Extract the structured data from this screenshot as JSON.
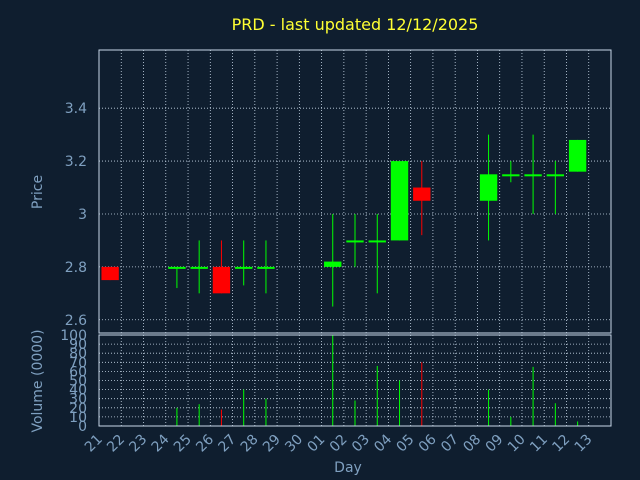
{
  "chart_data": {
    "type": "candlestick",
    "title": "PRD - last updated 12/12/2025",
    "xlabel": "Day",
    "ylabel": "Price",
    "volume_label": "Volume (0000)",
    "price_ylim": [
      2.55,
      3.62
    ],
    "price_ticks": [
      "2.6",
      "2.8",
      "3",
      "3.2",
      "3.4"
    ],
    "price_tick_values": [
      2.6,
      2.8,
      3.0,
      3.2,
      3.4
    ],
    "volume_ylim": [
      0,
      100
    ],
    "volume_ticks": [
      0,
      10,
      20,
      30,
      40,
      50,
      60,
      70,
      80,
      90,
      100
    ],
    "x_ticks": [
      "21",
      "22",
      "23",
      "24",
      "25",
      "26",
      "27",
      "28",
      "29",
      "30",
      "01",
      "02",
      "03",
      "04",
      "05",
      "06",
      "07",
      "08",
      "09",
      "10",
      "11",
      "12",
      "13"
    ],
    "up_color": "#00ff00",
    "down_color": "#ff0000",
    "candles": [
      {
        "x": "21",
        "open": 2.8,
        "high": 2.8,
        "low": 2.75,
        "close": 2.75,
        "volume": 0
      },
      {
        "x": "24",
        "open": 2.8,
        "high": 2.8,
        "low": 2.72,
        "close": 2.8,
        "volume": 20
      },
      {
        "x": "25",
        "open": 2.8,
        "high": 2.9,
        "low": 2.7,
        "close": 2.8,
        "volume": 24
      },
      {
        "x": "26",
        "open": 2.8,
        "high": 2.9,
        "low": 2.7,
        "close": 2.7,
        "volume": 18
      },
      {
        "x": "27",
        "open": 2.8,
        "high": 2.9,
        "low": 2.73,
        "close": 2.8,
        "volume": 40
      },
      {
        "x": "28",
        "open": 2.8,
        "high": 2.9,
        "low": 2.7,
        "close": 2.8,
        "volume": 30
      },
      {
        "x": "01",
        "open": 2.8,
        "high": 3.0,
        "low": 2.65,
        "close": 2.82,
        "volume": 100
      },
      {
        "x": "02",
        "open": 2.9,
        "high": 3.0,
        "low": 2.8,
        "close": 2.9,
        "volume": 28
      },
      {
        "x": "03",
        "open": 2.9,
        "high": 3.0,
        "low": 2.7,
        "close": 2.9,
        "volume": 66
      },
      {
        "x": "04",
        "open": 2.9,
        "high": 3.2,
        "low": 2.9,
        "close": 3.2,
        "volume": 50
      },
      {
        "x": "05",
        "open": 3.1,
        "high": 3.2,
        "low": 2.92,
        "close": 3.05,
        "volume": 70
      },
      {
        "x": "08",
        "open": 3.05,
        "high": 3.3,
        "low": 2.9,
        "close": 3.15,
        "volume": 40
      },
      {
        "x": "09",
        "open": 3.15,
        "high": 3.2,
        "low": 3.12,
        "close": 3.15,
        "volume": 10
      },
      {
        "x": "10",
        "open": 3.15,
        "high": 3.3,
        "low": 3.0,
        "close": 3.15,
        "volume": 65
      },
      {
        "x": "11",
        "open": 3.15,
        "high": 3.2,
        "low": 3.0,
        "close": 3.15,
        "volume": 25
      },
      {
        "x": "12",
        "open": 3.16,
        "high": 3.28,
        "low": 3.16,
        "close": 3.28,
        "volume": 5
      }
    ]
  }
}
